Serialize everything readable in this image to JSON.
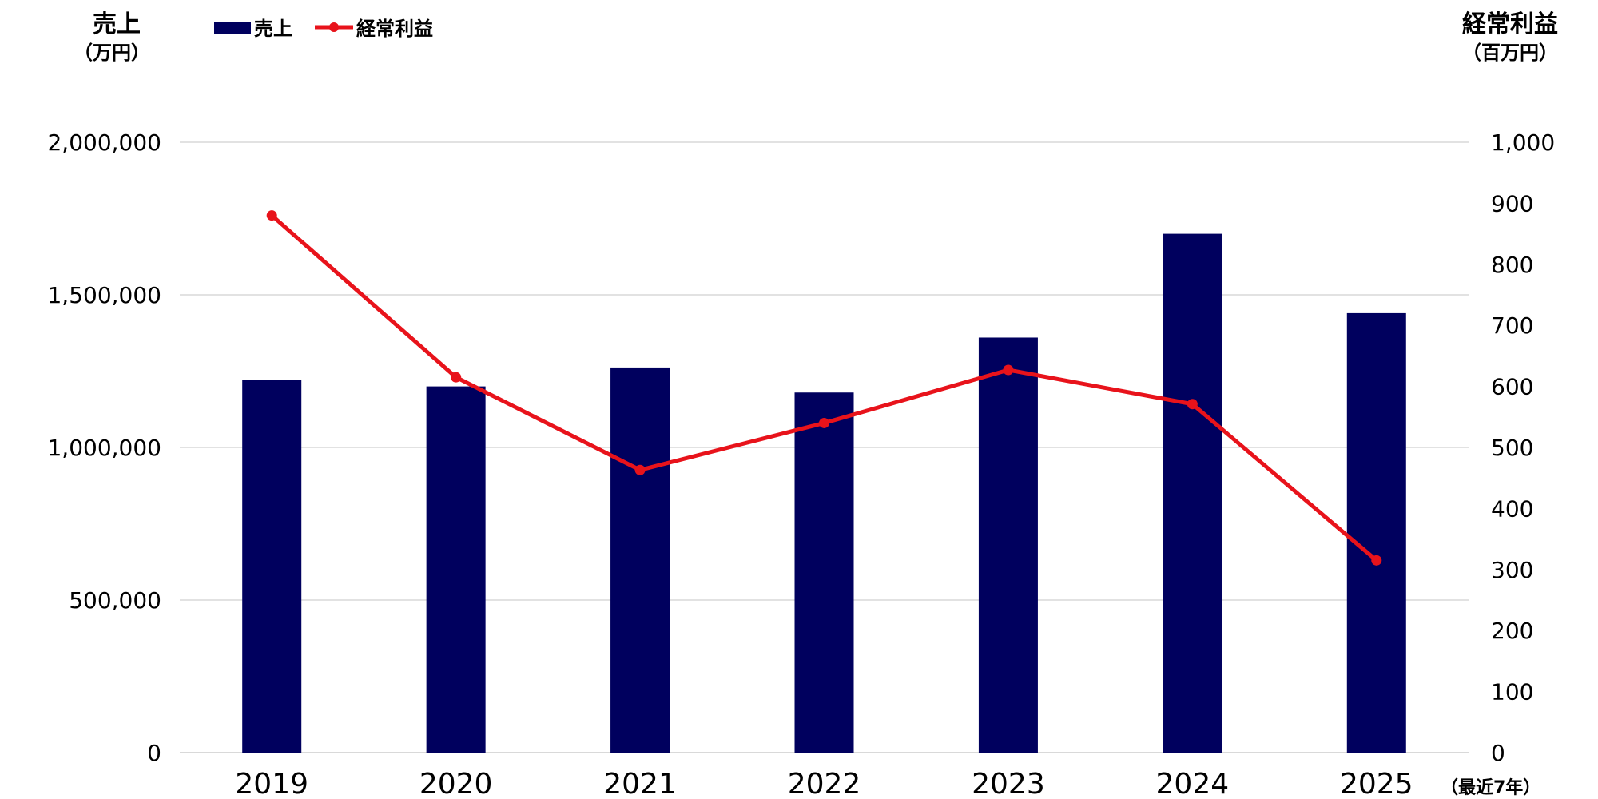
{
  "chart_data": {
    "type": "bar",
    "categories": [
      "2019",
      "2020",
      "2021",
      "2022",
      "2023",
      "2024",
      "2025"
    ],
    "series": [
      {
        "name": "売上",
        "type": "bar",
        "axis": "left",
        "color": "#00005e",
        "values": [
          1220000,
          1200000,
          1262000,
          1180000,
          1360000,
          1700000,
          1440000
        ]
      },
      {
        "name": "経常利益",
        "type": "line",
        "axis": "right",
        "color": "#e8131b",
        "values": [
          880,
          615,
          463,
          540,
          627,
          571,
          315
        ]
      }
    ],
    "left_axis": {
      "title": "売上",
      "unit": "（万円）",
      "ylim": [
        0,
        2000000
      ],
      "ticks": [
        0,
        500000,
        1000000,
        1500000,
        2000000
      ],
      "tick_labels": [
        "0",
        "500,000",
        "1,000,000",
        "1,500,000",
        "2,000,000"
      ]
    },
    "right_axis": {
      "title": "経常利益",
      "unit": "（百万円）",
      "ylim": [
        0,
        1000
      ],
      "ticks": [
        0,
        100,
        200,
        300,
        400,
        500,
        600,
        700,
        800,
        900,
        1000
      ],
      "tick_labels": [
        "0",
        "100",
        "200",
        "300",
        "400",
        "500",
        "600",
        "700",
        "800",
        "900",
        "1,000"
      ]
    },
    "x_axis_note": "（最近7年）",
    "legend": {
      "position": "top-left",
      "entries": [
        "売上",
        "経常利益"
      ]
    },
    "grid": true,
    "grid_color": "#d9d9d9",
    "axis_line_color": "#d9d9d9"
  }
}
